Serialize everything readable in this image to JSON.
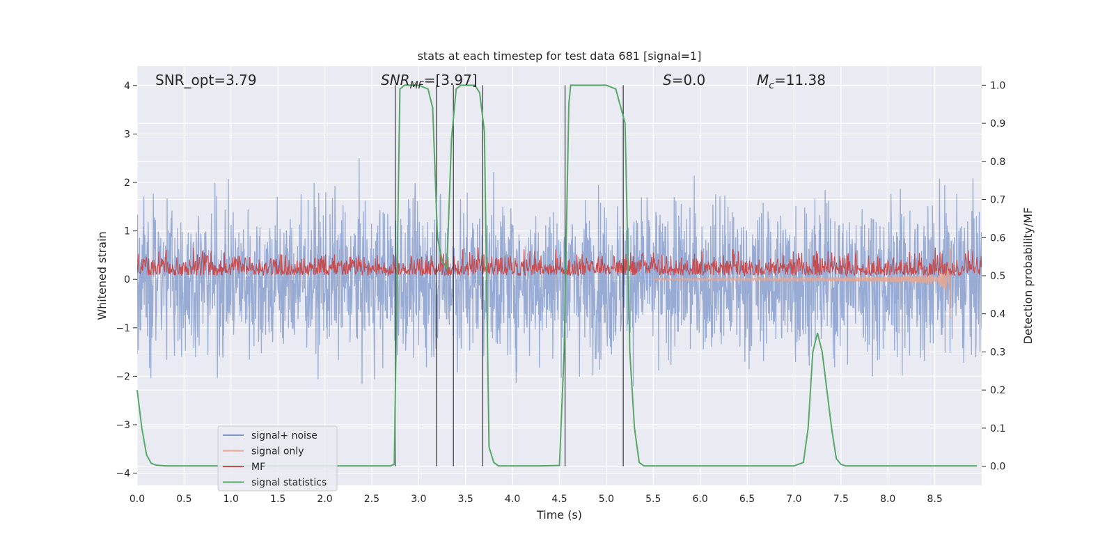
{
  "chart_data": {
    "type": "line",
    "title": "stats at each timestep for test data 681 [signal=1]",
    "xlabel": "Time (s)",
    "ylabel_left": "Whitened strain",
    "ylabel_right": "Detection probability/MF",
    "xlim": [
      0.0,
      9.0
    ],
    "ylim_left": [
      -4.25,
      4.4
    ],
    "ylim_right": [
      -0.05,
      1.05
    ],
    "xticks": [
      "0.0",
      "0.5",
      "1.0",
      "1.5",
      "2.0",
      "2.5",
      "3.0",
      "3.5",
      "4.0",
      "4.5",
      "5.0",
      "5.5",
      "6.0",
      "6.5",
      "7.0",
      "7.5",
      "8.0",
      "8.5"
    ],
    "yticks_left": [
      "4",
      "3",
      "2",
      "1",
      "0",
      "−1",
      "−2",
      "−3",
      "−4"
    ],
    "yticks_right": [
      "1.0",
      "0.9",
      "0.8",
      "0.7",
      "0.6",
      "0.5",
      "0.4",
      "0.3",
      "0.2",
      "0.1",
      "0.0"
    ],
    "grid": true,
    "legend_position": "lower-left",
    "annotations": {
      "snr_opt": "SNR_opt=3.79",
      "snr_mf_base": "SNR",
      "snr_mf_sub": "MF",
      "snr_mf_value": "=[3.97]",
      "s_var": "S",
      "s_value": "=0.0",
      "mc_base": "M",
      "mc_sub": "c",
      "mc_value": "=11.38"
    },
    "series": [
      {
        "name": "signal+ noise",
        "color": "#7b96c9",
        "axis": "left",
        "style": "noise",
        "amp_range": [
          -3.9,
          3.9
        ]
      },
      {
        "name": "signal only",
        "color": "#e8a48d",
        "axis": "left",
        "style": "chirp",
        "x_end": 8.67,
        "min_value": -0.8
      },
      {
        "name": "MF",
        "color": "#c44e52",
        "axis": "right",
        "style": "noise",
        "range": [
          0.5,
          0.6
        ]
      },
      {
        "name": "signal statistics",
        "color": "#55a868",
        "axis": "right",
        "x": [
          0.0,
          0.05,
          0.1,
          0.15,
          0.2,
          0.3,
          0.5,
          1.0,
          2.0,
          2.7,
          2.74,
          2.77,
          2.8,
          2.85,
          2.9,
          3.0,
          3.1,
          3.15,
          3.2,
          3.25,
          3.3,
          3.35,
          3.4,
          3.45,
          3.5,
          3.6,
          3.65,
          3.7,
          3.75,
          3.8,
          3.85,
          3.9,
          4.0,
          4.3,
          4.5,
          4.55,
          4.6,
          4.62,
          4.65,
          4.8,
          5.0,
          5.1,
          5.2,
          5.25,
          5.3,
          5.35,
          5.4,
          5.5,
          6.0,
          6.5,
          7.0,
          7.1,
          7.15,
          7.2,
          7.25,
          7.3,
          7.35,
          7.4,
          7.45,
          7.5,
          7.55,
          7.6,
          7.7,
          7.8,
          8.0,
          8.5,
          8.95
        ],
        "y": [
          0.2,
          0.1,
          0.03,
          0.008,
          0.003,
          0.001,
          0.001,
          0.001,
          0.001,
          0.001,
          0.005,
          0.5,
          0.99,
          1.0,
          1.0,
          1.0,
          0.99,
          0.94,
          0.6,
          0.54,
          0.52,
          0.86,
          0.99,
          1.0,
          1.0,
          1.0,
          0.98,
          0.88,
          0.05,
          0.01,
          0.001,
          0.001,
          0.001,
          0.001,
          0.002,
          0.3,
          0.95,
          1.0,
          1.0,
          1.0,
          1.0,
          0.99,
          0.9,
          0.3,
          0.1,
          0.01,
          0.001,
          0.001,
          0.001,
          0.001,
          0.001,
          0.01,
          0.1,
          0.3,
          0.35,
          0.3,
          0.2,
          0.1,
          0.02,
          0.005,
          0.001,
          0.001,
          0.001,
          0.001,
          0.001,
          0.001,
          0.001
        ]
      }
    ],
    "vlines_x": [
      2.75,
      3.19,
      3.37,
      3.68,
      4.56,
      5.18
    ],
    "vlines_range_right": [
      0.0,
      1.0
    ]
  }
}
